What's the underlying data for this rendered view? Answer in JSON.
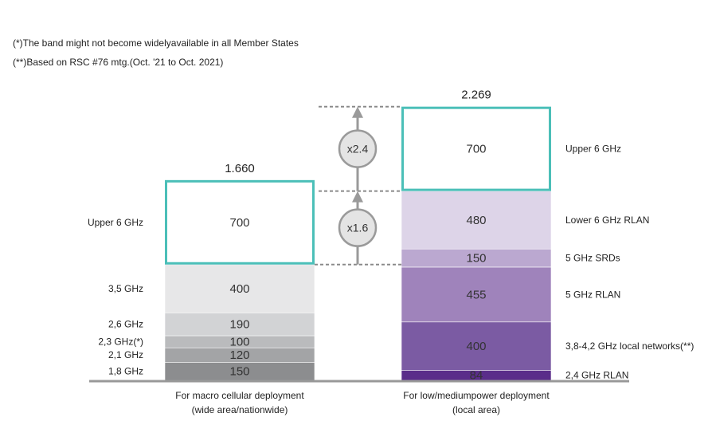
{
  "notes": [
    "(*)The band might not become widelyavailable in all Member States",
    "(**)Based on RSC #76 mtg.(Oct. '21 to Oct. 2021)"
  ],
  "colors": {
    "outline_teal": "#4bbfb8",
    "axis": "#999999",
    "arrow": "#9a9a9a",
    "text": "#333333"
  },
  "chart_data": {
    "type": "bar",
    "stacked": true,
    "unit": "MHz",
    "categories": [
      "For macro cellular deployment\n(wide area/nationwide)",
      "For low/mediumpower deployment\n(local area)"
    ],
    "columns": [
      {
        "total_label": "1.660",
        "segments": [
          {
            "label": "1,8 GHz",
            "value": 150,
            "value_label": "150",
            "color": "#8c8d8f"
          },
          {
            "label": "2,1 GHz",
            "value": 120,
            "value_label": "120",
            "color": "#a3a4a6"
          },
          {
            "label": "2,3 GHz(*)",
            "value": 100,
            "value_label": "100",
            "color": "#babbbd"
          },
          {
            "label": "2,6 GHz",
            "value": 190,
            "value_label": "190",
            "color": "#d2d3d5"
          },
          {
            "label": "3,5 GHz",
            "value": 400,
            "value_label": "400",
            "color": "#e7e7e8"
          },
          {
            "label": "Upper 6 GHz",
            "value": 700,
            "value_label": "700",
            "color": "#ffffff",
            "outlined": true
          }
        ]
      },
      {
        "total_label": "2.269",
        "segments": [
          {
            "label": "2,4 GHz RLAN",
            "value": 84,
            "value_label": "84",
            "color": "#5a2d8a"
          },
          {
            "label": "3,8-4,2 GHz local networks(**)",
            "value": 400,
            "value_label": "400",
            "color": "#7b5ba3"
          },
          {
            "label": "5 GHz RLAN",
            "value": 455,
            "value_label": "455",
            "color": "#9f83bb"
          },
          {
            "label": "5 GHz SRDs",
            "value": 150,
            "value_label": "150",
            "color": "#bba8d0"
          },
          {
            "label": "Lower 6 GHz RLAN",
            "value": 480,
            "value_label": "480",
            "color": "#ddd4e8"
          },
          {
            "label": "Upper 6 GHz",
            "value": 700,
            "value_label": "700",
            "color": "#ffffff",
            "outlined": true
          }
        ]
      }
    ],
    "annotations": [
      {
        "label": "x1.6",
        "from_value": 960,
        "to_value": 1660
      },
      {
        "label": "x2.4",
        "from_value": 1569,
        "to_value": 2269
      }
    ]
  }
}
